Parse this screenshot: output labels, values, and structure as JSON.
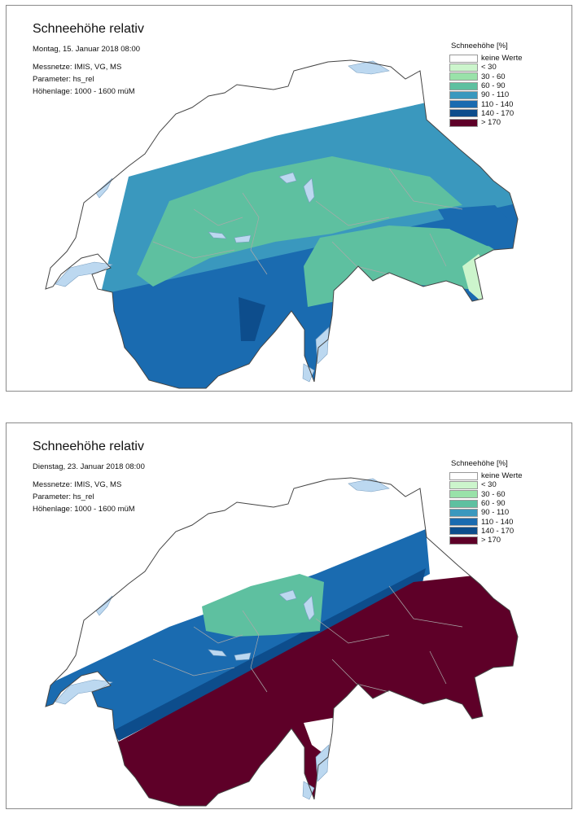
{
  "maps": [
    {
      "title": "Schneehöhe relativ",
      "date": "Montag, 15. Januar 2018 08:00",
      "meta": [
        "Messnetze: IMIS, VG, MS",
        "Parameter: hs_rel",
        "Höhenlage: 1000 - 1600 müM"
      ]
    },
    {
      "title": "Schneehöhe relativ",
      "date": "Dienstag, 23. Januar 2018 08:00",
      "meta": [
        "Messnetze: IMIS, VG, MS",
        "Parameter: hs_rel",
        "Höhenlage: 1000 - 1600 müM"
      ]
    }
  ],
  "legend": {
    "title": "Schneehöhe [%]",
    "classes": [
      {
        "label": "keine Werte",
        "color": "#ffffff"
      },
      {
        "label": "< 30",
        "color": "#ccf5cc"
      },
      {
        "label": "30 - 60",
        "color": "#99e2a9"
      },
      {
        "label": "60 - 90",
        "color": "#5ec0a0"
      },
      {
        "label": "90 - 110",
        "color": "#3a98be"
      },
      {
        "label": "110 - 140",
        "color": "#1a6bb0"
      },
      {
        "label": "140 - 170",
        "color": "#0d4d8c"
      },
      {
        "label": "> 170",
        "color": "#5e0028"
      }
    ]
  },
  "colors": {
    "border": "#8a8a8a",
    "outline": "#444444",
    "lake": "#bcd8f0",
    "internal_lines": "#aaaaaa"
  }
}
